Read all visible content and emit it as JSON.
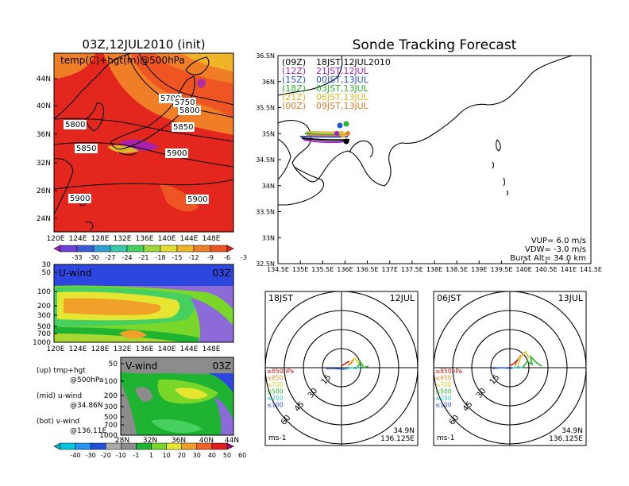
{
  "titles": {
    "left": "03Z,12JUL2010 (init)",
    "right": "Sonde Tracking Forecast"
  },
  "colorbars": {
    "temp": {
      "labels": [
        "-33",
        "-30",
        "-27",
        "-24",
        "-21",
        "-18",
        "-15",
        "-12",
        "-9",
        "-6",
        "-3"
      ],
      "colors": [
        "#a020c8",
        "#6e3fd6",
        "#3a5bd8",
        "#2fa0d6",
        "#36c8a8",
        "#46d060",
        "#9ad83a",
        "#e0dc32",
        "#f0b428",
        "#f07e26",
        "#ee5522",
        "#e3261e"
      ]
    },
    "wind": {
      "labels": [
        "-40",
        "-30",
        "-20",
        "-10",
        "-1",
        "1",
        "10",
        "20",
        "30",
        "40",
        "50",
        "60"
      ],
      "colors": [
        "#00b4d2",
        "#00c8dc",
        "#2896f0",
        "#1e50dc",
        "#aaaaaa",
        "#8c8c8c",
        "#1eb432",
        "#78d728",
        "#e6e632",
        "#f0a028",
        "#f06428",
        "#dc1e1e",
        "#aa0078"
      ]
    }
  },
  "panels": {
    "temp_map": {
      "label": "temp(C)+hgt(m)@500hPa",
      "lat_ticks": [
        "44N",
        "40N",
        "36N",
        "32N",
        "28N",
        "24N"
      ],
      "lon_ticks": [
        "120E",
        "124E",
        "128E",
        "132E",
        "136E",
        "140E",
        "144E",
        "148E"
      ],
      "contour_labels": [
        "5700",
        "5750",
        "5800",
        "5800",
        "5850",
        "5850",
        "5900",
        "5900",
        "5900"
      ]
    },
    "u_wind": {
      "label": "U-wind",
      "time": "03Z",
      "p_ticks": [
        "30",
        "50",
        "100",
        "200",
        "300",
        "500",
        "700",
        "1000"
      ],
      "lon_ticks": [
        "120E",
        "124E",
        "128E",
        "132E",
        "136E",
        "140E",
        "144E",
        "148E"
      ]
    },
    "v_wind": {
      "label": "V-wind",
      "time": "03Z",
      "p_ticks": [
        "50",
        "100",
        "200",
        "300",
        "500",
        "700",
        "1000"
      ],
      "lat_ticks": [
        "28N",
        "32N",
        "36N",
        "40N",
        "44N"
      ]
    },
    "notes": {
      "up": [
        "(up) tmp+hgt",
        "@500hPa"
      ],
      "mid": [
        "(mid) u-wind",
        "@34.86N"
      ],
      "bot": [
        "(bot) v-wind",
        "@136.11E"
      ]
    },
    "track_map": {
      "lat_ticks": [
        "36.5N",
        "36N",
        "35.5N",
        "35N",
        "34.5N",
        "34N",
        "33.5N",
        "33N",
        "32.5N"
      ],
      "lon_ticks": [
        "134.5E",
        "135E",
        "135.5E",
        "136E",
        "136.5E",
        "137E",
        "137.5E",
        "138E",
        "138.5E",
        "139E",
        "139.5E",
        "140E",
        "140.5E",
        "141E",
        "141.5E"
      ],
      "legend": [
        {
          "code": "(09Z)",
          "time": "18JST,12JUL2010",
          "color": "#000000"
        },
        {
          "code": "(12Z)",
          "time": "21JST,12JUL",
          "color": "#a020c8"
        },
        {
          "code": "(15Z)",
          "time": "00JST,13JUL",
          "color": "#2850dc"
        },
        {
          "code": "(18Z)",
          "time": "03JST,13JUL",
          "color": "#28b428"
        },
        {
          "code": "(21Z)",
          "time": "06JST,13JUL",
          "color": "#e6b428"
        },
        {
          "code": "(00Z)",
          "time": "09JST,13JUL",
          "color": "#f07828"
        }
      ],
      "params": [
        "VUP=  6.0  m/s",
        "VDW= -3.0  m/s",
        "Burst Alt=  34.0  km"
      ]
    },
    "hodo_left": {
      "time": "18JST",
      "date": "12JUL",
      "ring_labels": [
        "15",
        "30",
        "45",
        "60"
      ],
      "levels": [
        {
          "label": "≥850hPa",
          "color": "#dc1e1e"
        },
        {
          "label": "≤850",
          "color": "#f08c28"
        },
        {
          "label": "≤700",
          "color": "#e6c828"
        },
        {
          "label": "≤500",
          "color": "#28b428"
        },
        {
          "label": "≤250",
          "color": "#28c8c8"
        },
        {
          "label": "≤100",
          "color": "#2850dc"
        }
      ],
      "unit": "ms-1",
      "lat": "34.9N",
      "lon": "136.125E"
    },
    "hodo_right": {
      "time": "06JST",
      "date": "13JUL",
      "ring_labels": [
        "15",
        "30",
        "45",
        "60"
      ],
      "levels": [
        {
          "label": "≥850hPa",
          "color": "#dc1e1e"
        },
        {
          "label": "≤850",
          "color": "#f08c28"
        },
        {
          "label": "≤700",
          "color": "#e6c828"
        },
        {
          "label": "≤500",
          "color": "#28b428"
        },
        {
          "label": "≤250",
          "color": "#28c8c8"
        },
        {
          "label": "≤100",
          "color": "#2850dc"
        }
      ],
      "unit": "ms-1",
      "lat": "34.9N",
      "lon": "136.125E"
    }
  },
  "chart_data": [
    {
      "type": "heatmap",
      "panel": "temp_map",
      "title": "03Z,12JUL2010 (init)",
      "variable": "temp(C)+hgt(m)@500hPa",
      "xlim": [
        "120E",
        "150E"
      ],
      "ylim": [
        "22N",
        "46N"
      ]
    },
    {
      "type": "heatmap",
      "panel": "u_wind",
      "variable": "U-wind",
      "xlim": [
        "120E",
        "150E"
      ],
      "ylim_hPa": [
        1000,
        30
      ]
    },
    {
      "type": "heatmap",
      "panel": "v_wind",
      "variable": "V-wind",
      "xlim": [
        "28N",
        "44N"
      ],
      "ylim_hPa": [
        1000,
        50
      ]
    },
    {
      "type": "line",
      "panel": "track_map",
      "title": "Sonde Tracking Forecast",
      "xlim": [
        "134.5E",
        "141.5E"
      ],
      "ylim": [
        "32.5N",
        "36.5N"
      ]
    },
    {
      "type": "line",
      "panel": "hodo_left",
      "rings": [
        15,
        30,
        45,
        60
      ]
    },
    {
      "type": "line",
      "panel": "hodo_right",
      "rings": [
        15,
        30,
        45,
        60
      ]
    }
  ]
}
